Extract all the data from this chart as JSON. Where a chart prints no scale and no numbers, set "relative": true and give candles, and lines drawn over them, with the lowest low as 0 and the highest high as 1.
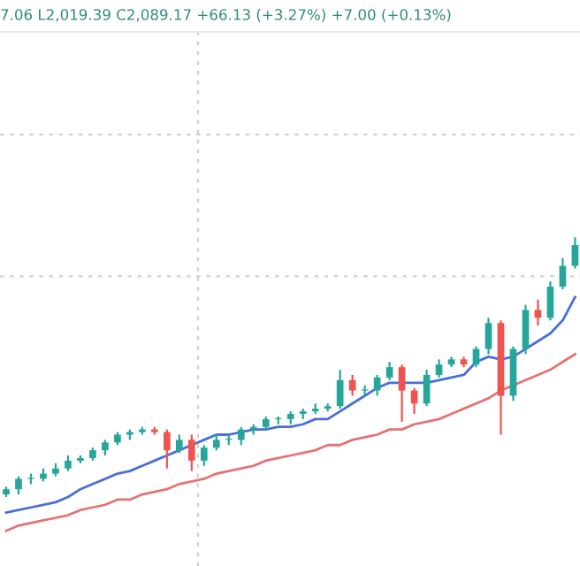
{
  "chart_data": {
    "type": "candlestick",
    "relative": true,
    "title": "7.06 L2,019.39 C2,089.17 +66.13 (+3.27%) +7.00 (+0.13%)",
    "grid": true,
    "categories": [
      null,
      null,
      null,
      null,
      null,
      null,
      null,
      null,
      null,
      null,
      null,
      null,
      null,
      null,
      null,
      null,
      null,
      null,
      null,
      null,
      null,
      null,
      null,
      null,
      null,
      null,
      null,
      null,
      null,
      null,
      null,
      null,
      null,
      null,
      null,
      null,
      null,
      null,
      null,
      null,
      null,
      null,
      null,
      null,
      null,
      null,
      null
    ],
    "ohlc": [
      [
        0.01,
        0.04,
        0,
        0.03
      ],
      [
        0.03,
        0.08,
        0.01,
        0.07
      ],
      [
        0.07,
        0.09,
        0.05,
        0.07
      ],
      [
        0.07,
        0.11,
        0.06,
        0.09
      ],
      [
        0.09,
        0.13,
        0.08,
        0.11
      ],
      [
        0.11,
        0.16,
        0.1,
        0.14
      ],
      [
        0.14,
        0.16,
        0.13,
        0.15
      ],
      [
        0.15,
        0.19,
        0.14,
        0.18
      ],
      [
        0.18,
        0.22,
        0.16,
        0.21
      ],
      [
        0.21,
        0.25,
        0.2,
        0.24
      ],
      [
        0.24,
        0.26,
        0.22,
        0.25
      ],
      [
        0.25,
        0.27,
        0.24,
        0.26
      ],
      [
        0.26,
        0.27,
        0.24,
        0.25
      ],
      [
        0.25,
        0.26,
        0.11,
        0.18
      ],
      [
        0.18,
        0.24,
        0.17,
        0.22
      ],
      [
        0.22,
        0.24,
        0.1,
        0.14
      ],
      [
        0.14,
        0.2,
        0.12,
        0.19
      ],
      [
        0.19,
        0.24,
        0.18,
        0.22
      ],
      [
        0.22,
        0.24,
        0.2,
        0.22
      ],
      [
        0.22,
        0.27,
        0.2,
        0.26
      ],
      [
        0.26,
        0.28,
        0.24,
        0.27
      ],
      [
        0.27,
        0.31,
        0.26,
        0.3
      ],
      [
        0.3,
        0.31,
        0.28,
        0.3
      ],
      [
        0.3,
        0.33,
        0.28,
        0.32
      ],
      [
        0.32,
        0.34,
        0.3,
        0.33
      ],
      [
        0.33,
        0.36,
        0.32,
        0.34
      ],
      [
        0.34,
        0.36,
        0.33,
        0.35
      ],
      [
        0.35,
        0.49,
        0.34,
        0.45
      ],
      [
        0.45,
        0.47,
        0.39,
        0.41
      ],
      [
        0.41,
        0.43,
        0.39,
        0.41
      ],
      [
        0.41,
        0.47,
        0.39,
        0.46
      ],
      [
        0.46,
        0.52,
        0.45,
        0.5
      ],
      [
        0.5,
        0.51,
        0.29,
        0.41
      ],
      [
        0.41,
        0.42,
        0.32,
        0.36
      ],
      [
        0.36,
        0.49,
        0.35,
        0.47
      ],
      [
        0.47,
        0.53,
        0.46,
        0.51
      ],
      [
        0.51,
        0.54,
        0.5,
        0.53
      ],
      [
        0.53,
        0.54,
        0.5,
        0.51
      ],
      [
        0.51,
        0.58,
        0.5,
        0.57
      ],
      [
        0.57,
        0.69,
        0.55,
        0.67
      ],
      [
        0.67,
        0.68,
        0.24,
        0.39
      ],
      [
        0.39,
        0.58,
        0.37,
        0.57
      ],
      [
        0.57,
        0.74,
        0.55,
        0.72
      ],
      [
        0.72,
        0.76,
        0.66,
        0.69
      ],
      [
        0.69,
        0.83,
        0.68,
        0.81
      ],
      [
        0.81,
        0.92,
        0.8,
        0.89
      ],
      [
        0.89,
        1,
        0.88,
        0.97
      ]
    ],
    "series": [
      {
        "type": "line",
        "color": "#4a6fd8",
        "values": [
          -0.06,
          -0.05,
          -0.04,
          -0.03,
          -0.02,
          0,
          0.03,
          0.05,
          0.07,
          0.09,
          0.1,
          0.12,
          0.14,
          0.16,
          0.18,
          0.2,
          0.22,
          0.24,
          0.24,
          0.25,
          0.26,
          0.26,
          0.27,
          0.27,
          0.28,
          0.3,
          0.3,
          0.33,
          0.36,
          0.39,
          0.42,
          0.44,
          0.44,
          0.44,
          0.44,
          0.45,
          0.46,
          0.47,
          0.52,
          0.54,
          0.53,
          0.54,
          0.57,
          0.6,
          0.63,
          0.68,
          0.77
        ]
      },
      {
        "type": "line",
        "color": "#e57373",
        "values": [
          -0.13,
          -0.11,
          -0.1,
          -0.09,
          -0.08,
          -0.07,
          -0.05,
          -0.04,
          -0.03,
          -0.01,
          -0.01,
          0.01,
          0.02,
          0.03,
          0.05,
          0.06,
          0.07,
          0.09,
          0.1,
          0.11,
          0.12,
          0.14,
          0.15,
          0.16,
          0.17,
          0.18,
          0.2,
          0.2,
          0.22,
          0.23,
          0.24,
          0.26,
          0.26,
          0.28,
          0.29,
          0.3,
          0.32,
          0.34,
          0.36,
          0.38,
          0.41,
          0.43,
          0.45,
          0.47,
          0.49,
          0.52,
          0.55
        ]
      }
    ]
  }
}
